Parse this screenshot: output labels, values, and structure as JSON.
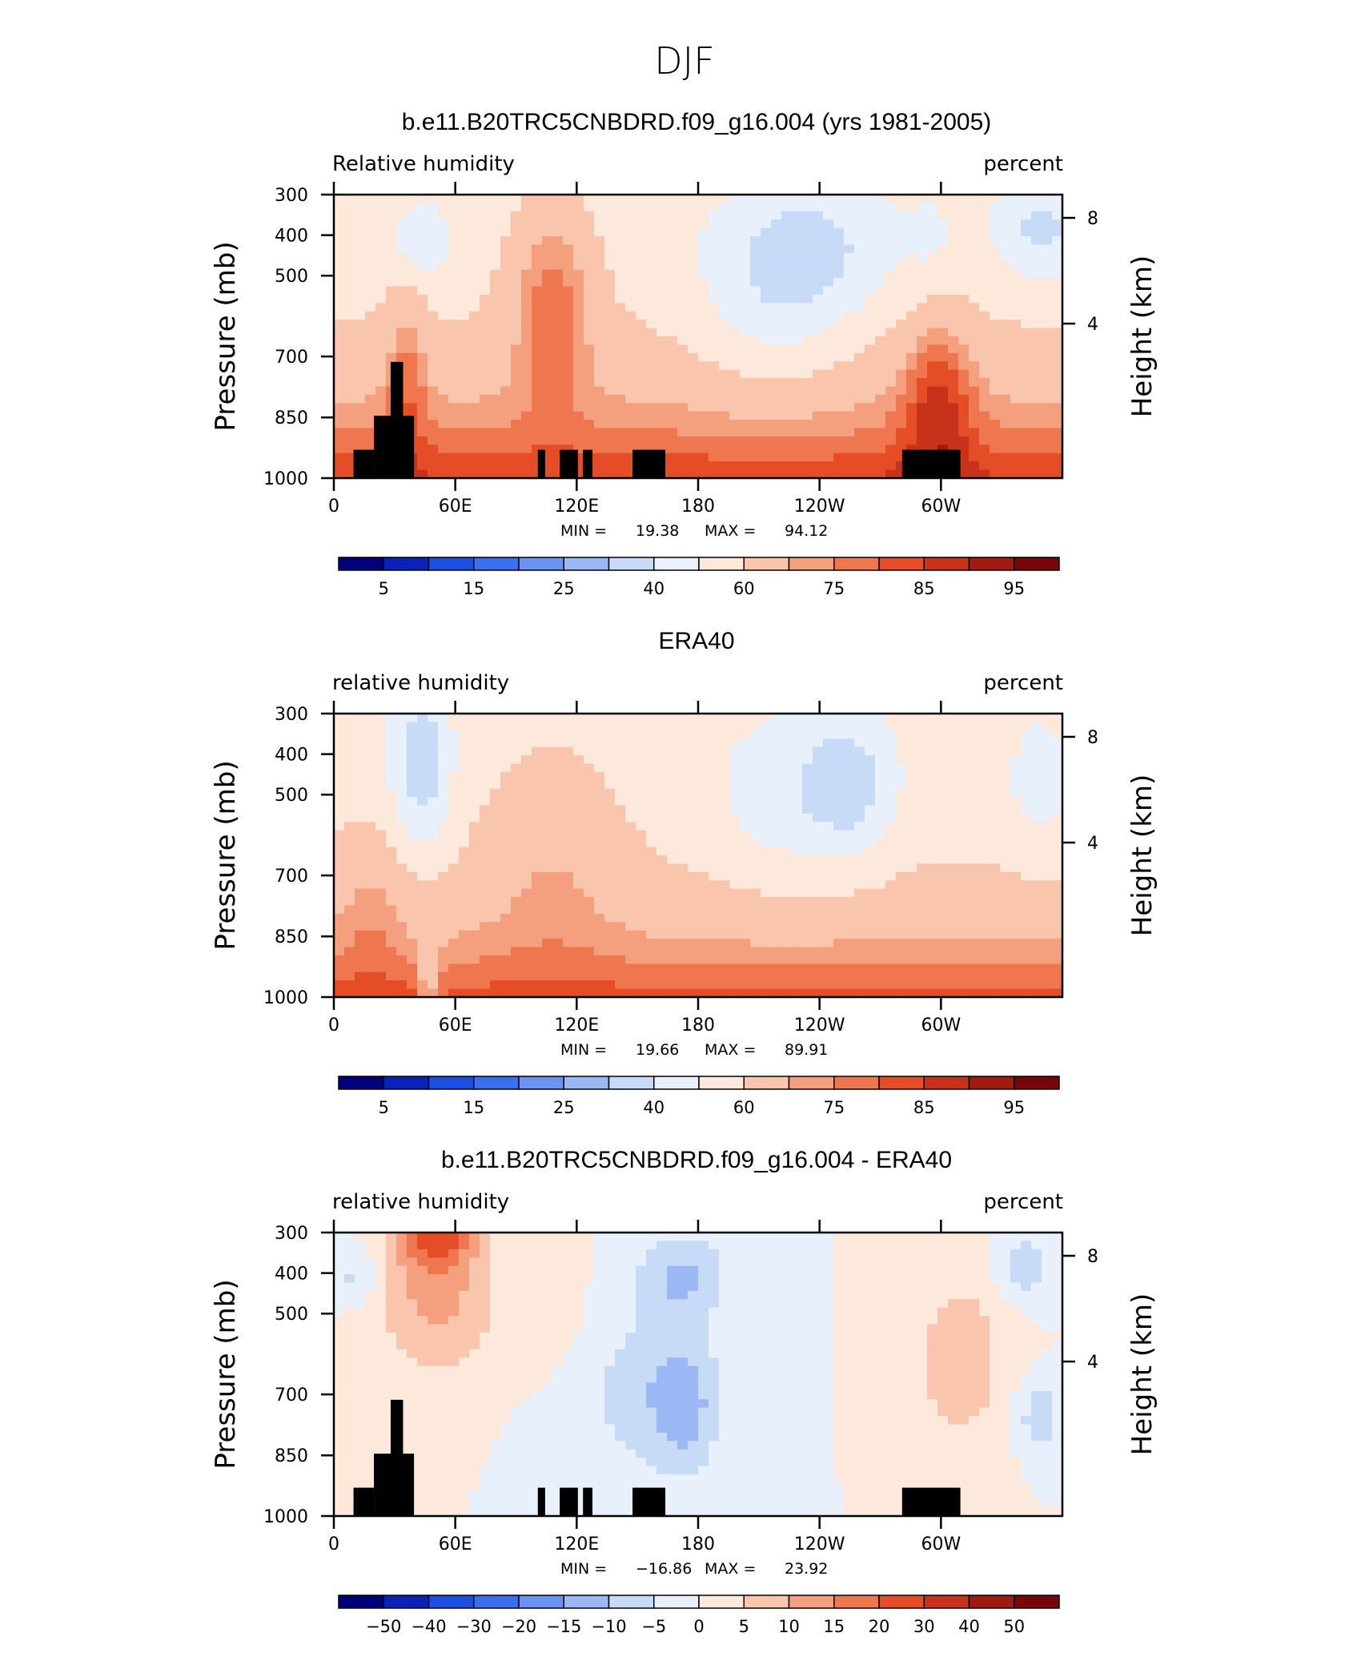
{
  "page_title": "DJF",
  "chart_data": [
    {
      "type": "heatmap",
      "title": "b.e11.B20TRC5CNBDRD.f09_g16.004 (yrs 1981-2005)",
      "left_label": "Relative humidity",
      "right_label": "percent",
      "ylabel": "Pressure (mb)",
      "y2label": "Height (km)",
      "x_ticks": [
        "0",
        "60E",
        "120E",
        "180",
        "120W",
        "60W"
      ],
      "y_ticks": [
        "300",
        "400",
        "500",
        "700",
        "850",
        "1000"
      ],
      "y2_ticks": [
        "8",
        "4"
      ],
      "min_label": "MIN =",
      "min": "19.38",
      "max_label": "MAX =",
      "max": "94.12",
      "colorbar_labels": [
        "5",
        "15",
        "25",
        "40",
        "60",
        "75",
        "85",
        "95"
      ],
      "topography": true
    },
    {
      "type": "heatmap",
      "title": "ERA40",
      "left_label": "relative humidity",
      "right_label": "percent",
      "ylabel": "Pressure (mb)",
      "y2label": "Height (km)",
      "x_ticks": [
        "0",
        "60E",
        "120E",
        "180",
        "120W",
        "60W"
      ],
      "y_ticks": [
        "300",
        "400",
        "500",
        "700",
        "850",
        "1000"
      ],
      "y2_ticks": [
        "8",
        "4"
      ],
      "min_label": "MIN =",
      "min": "19.66",
      "max_label": "MAX =",
      "max": "89.91",
      "colorbar_labels": [
        "5",
        "15",
        "25",
        "40",
        "60",
        "75",
        "85",
        "95"
      ],
      "topography": false
    },
    {
      "type": "heatmap",
      "title": "b.e11.B20TRC5CNBDRD.f09_g16.004 - ERA40",
      "left_label": "relative humidity",
      "right_label": "percent",
      "ylabel": "Pressure (mb)",
      "y2label": "Height (km)",
      "x_ticks": [
        "0",
        "60E",
        "120E",
        "180",
        "120W",
        "60W"
      ],
      "y_ticks": [
        "300",
        "400",
        "500",
        "700",
        "850",
        "1000"
      ],
      "y2_ticks": [
        "8",
        "4"
      ],
      "min_label": "MIN =",
      "min": "−16.86",
      "max_label": "MAX =",
      "max": "23.92",
      "colorbar_labels": [
        "−50",
        "−40",
        "−30",
        "−20",
        "−15",
        "−10",
        "−5",
        "0",
        "5",
        "10",
        "15",
        "20",
        "30",
        "40",
        "50"
      ],
      "topography": true
    }
  ],
  "colormap": [
    "#00007a",
    "#0a22b8",
    "#1c4ee0",
    "#3a6ff0",
    "#6a93f3",
    "#9bb8f5",
    "#c7dbf7",
    "#e8f1fb",
    "#fde8dc",
    "#f9c6ad",
    "#f4a07f",
    "#ef7750",
    "#e54d27",
    "#c9321a",
    "#a01a10",
    "#780508"
  ]
}
